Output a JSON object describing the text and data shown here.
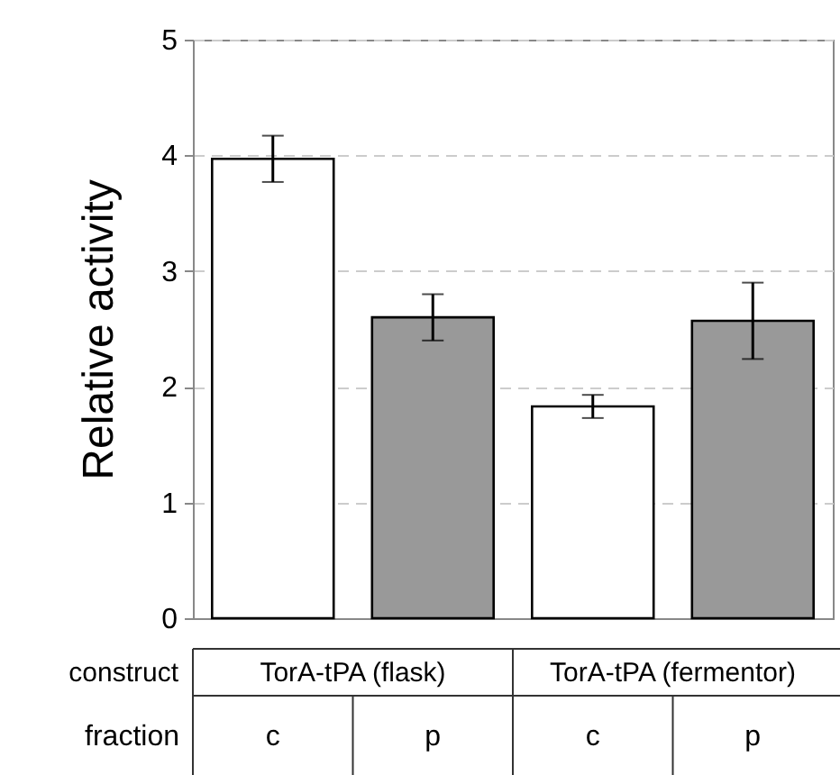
{
  "chart_data": {
    "type": "bar",
    "categories": [
      "c",
      "p",
      "c",
      "p"
    ],
    "values": [
      3.97,
      2.6,
      1.83,
      2.57
    ],
    "colors": [
      "#ffffff",
      "#999999",
      "#ffffff",
      "#999999"
    ],
    "errors": [
      0.2,
      0.2,
      0.1,
      0.33
    ],
    "ylabel": "Relative activity",
    "xlabel": "fraction",
    "annotations": [
      "construct",
      "TorA-tPA (flask)",
      "TorA-tPA (fermentor)"
    ],
    "ylim": [
      0,
      5
    ],
    "yticks": [
      0,
      1,
      2,
      3,
      4,
      5
    ],
    "grid": "y"
  }
}
